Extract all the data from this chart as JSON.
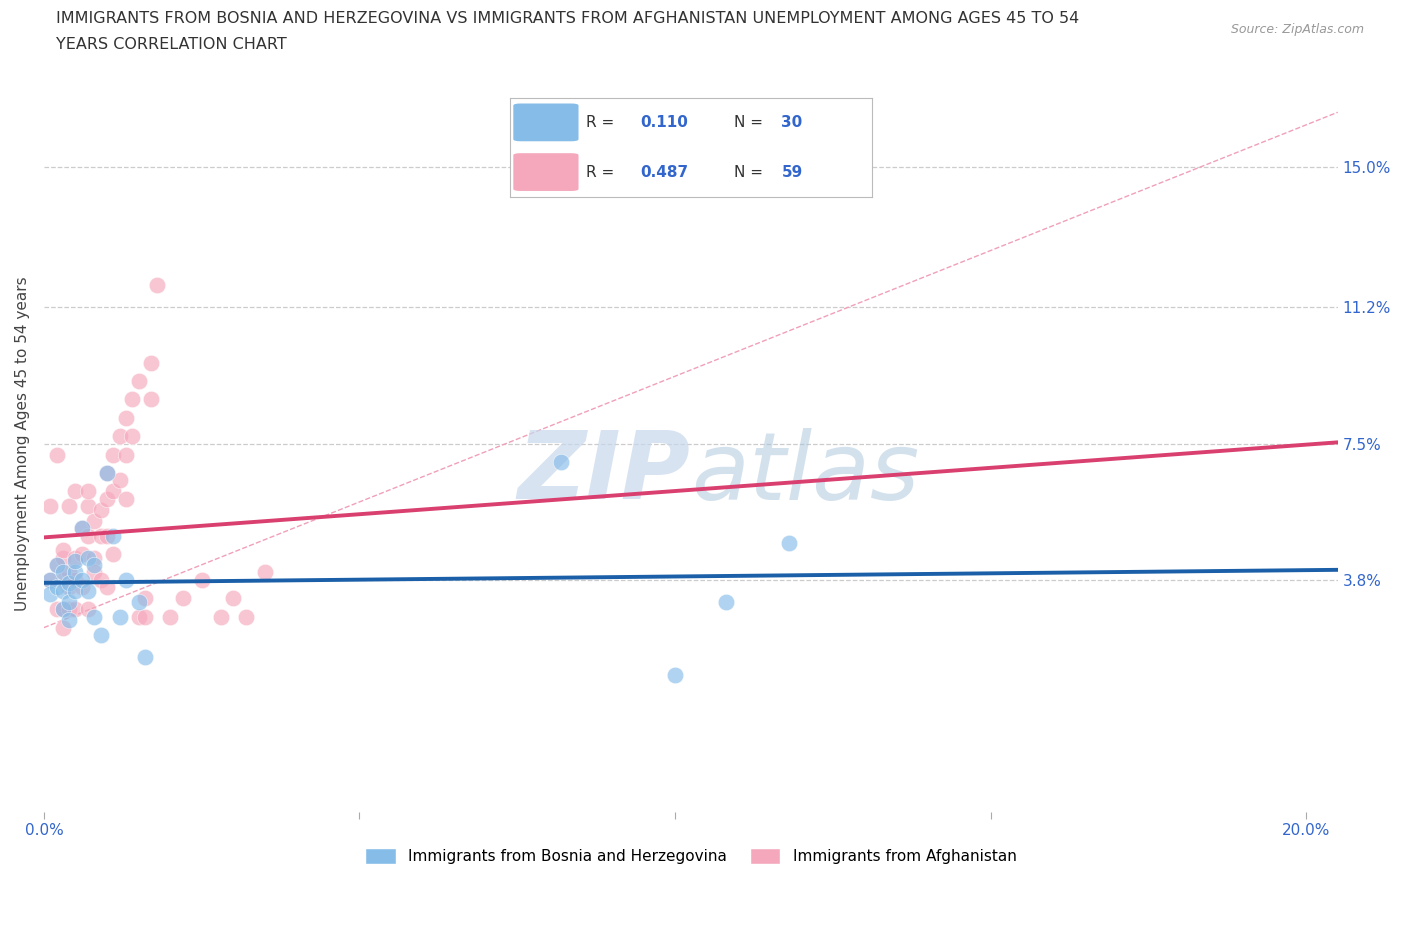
{
  "title_line1": "IMMIGRANTS FROM BOSNIA AND HERZEGOVINA VS IMMIGRANTS FROM AFGHANISTAN UNEMPLOYMENT AMONG AGES 45 TO 54",
  "title_line2": "YEARS CORRELATION CHART",
  "source": "Source: ZipAtlas.com",
  "ylabel": "Unemployment Among Ages 45 to 54 years",
  "xlim": [
    0.0,
    0.205
  ],
  "ylim": [
    -0.025,
    0.175
  ],
  "right_yticks": [
    0.038,
    0.075,
    0.112,
    0.15
  ],
  "right_yticklabels": [
    "3.8%",
    "7.5%",
    "11.2%",
    "15.0%"
  ],
  "hlines": [
    0.038,
    0.075,
    0.112,
    0.15
  ],
  "bosnia_color": "#85BCE8",
  "afghanistan_color": "#F5A8BC",
  "bosnia_line_color": "#1A5FA8",
  "afghanistan_line_color": "#D94070",
  "ref_line_color": "#F0A0B8",
  "label_color": "#3366CC",
  "bosnia_R": 0.11,
  "bosnia_N": 30,
  "afghanistan_R": 0.487,
  "afghanistan_N": 59,
  "bosnia_x": [
    0.001,
    0.001,
    0.002,
    0.002,
    0.003,
    0.003,
    0.003,
    0.004,
    0.004,
    0.004,
    0.005,
    0.005,
    0.005,
    0.006,
    0.006,
    0.007,
    0.007,
    0.008,
    0.008,
    0.009,
    0.01,
    0.011,
    0.012,
    0.013,
    0.015,
    0.016,
    0.082,
    0.1,
    0.108,
    0.118
  ],
  "bosnia_y": [
    0.038,
    0.034,
    0.042,
    0.036,
    0.04,
    0.035,
    0.03,
    0.037,
    0.032,
    0.027,
    0.04,
    0.035,
    0.043,
    0.052,
    0.038,
    0.044,
    0.035,
    0.042,
    0.028,
    0.023,
    0.067,
    0.05,
    0.028,
    0.038,
    0.032,
    0.017,
    0.07,
    0.012,
    0.032,
    0.048
  ],
  "afghanistan_x": [
    0.001,
    0.001,
    0.002,
    0.002,
    0.002,
    0.003,
    0.003,
    0.003,
    0.003,
    0.003,
    0.004,
    0.004,
    0.004,
    0.004,
    0.005,
    0.005,
    0.005,
    0.005,
    0.006,
    0.006,
    0.006,
    0.007,
    0.007,
    0.007,
    0.007,
    0.008,
    0.008,
    0.008,
    0.009,
    0.009,
    0.009,
    0.01,
    0.01,
    0.01,
    0.01,
    0.011,
    0.011,
    0.011,
    0.012,
    0.012,
    0.013,
    0.013,
    0.013,
    0.014,
    0.014,
    0.015,
    0.015,
    0.016,
    0.016,
    0.017,
    0.017,
    0.018,
    0.02,
    0.022,
    0.025,
    0.028,
    0.03,
    0.032,
    0.035
  ],
  "afghanistan_y": [
    0.038,
    0.058,
    0.042,
    0.072,
    0.03,
    0.044,
    0.038,
    0.03,
    0.025,
    0.046,
    0.04,
    0.036,
    0.058,
    0.03,
    0.062,
    0.044,
    0.038,
    0.03,
    0.052,
    0.045,
    0.036,
    0.058,
    0.05,
    0.03,
    0.062,
    0.054,
    0.044,
    0.04,
    0.05,
    0.057,
    0.038,
    0.067,
    0.06,
    0.05,
    0.036,
    0.072,
    0.062,
    0.045,
    0.077,
    0.065,
    0.082,
    0.072,
    0.06,
    0.087,
    0.077,
    0.092,
    0.028,
    0.033,
    0.028,
    0.097,
    0.087,
    0.118,
    0.028,
    0.033,
    0.038,
    0.028,
    0.033,
    0.028,
    0.04
  ],
  "legend_bosnia_label": "Immigrants from Bosnia and Herzegovina",
  "legend_afghanistan_label": "Immigrants from Afghanistan"
}
